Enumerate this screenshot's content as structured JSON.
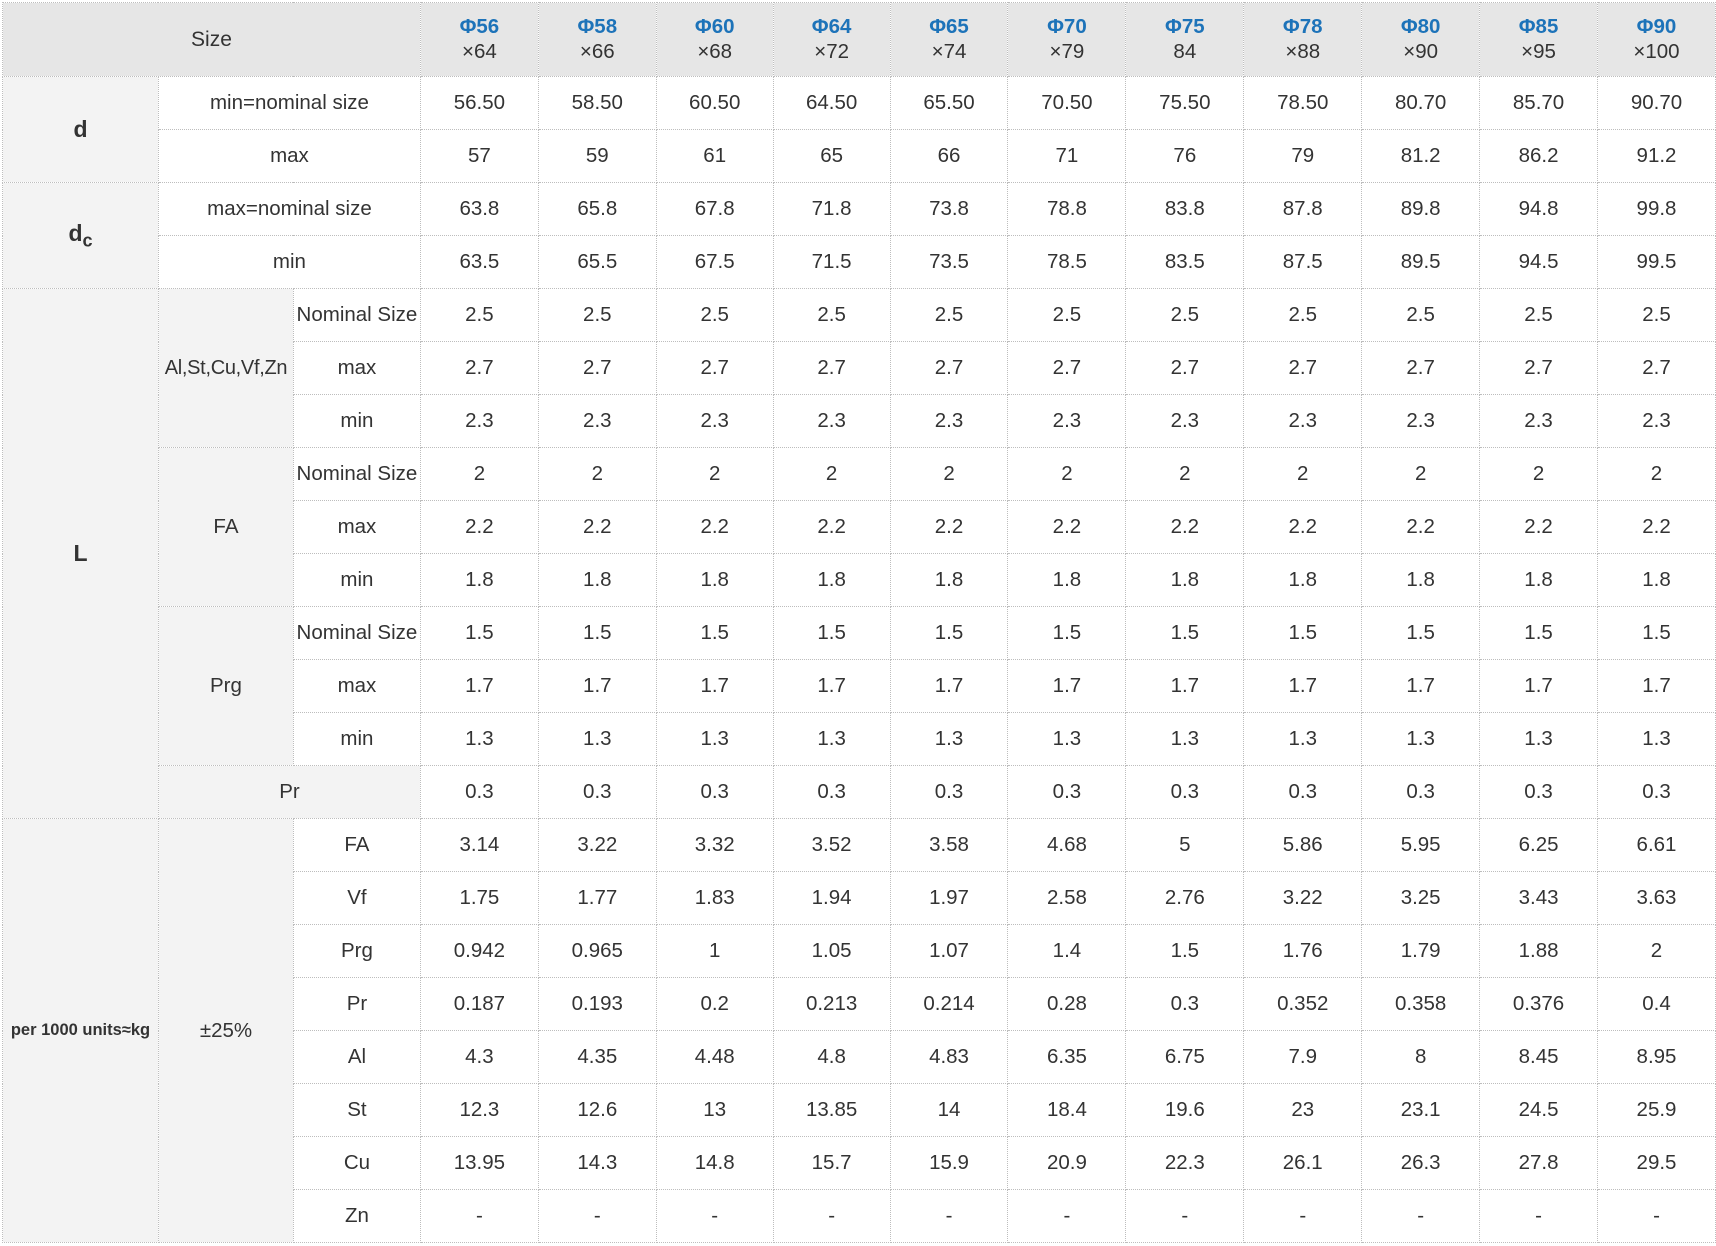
{
  "header": {
    "size_label": "Size",
    "columns": [
      {
        "phi": "Φ56",
        "dim": "×64"
      },
      {
        "phi": "Φ58",
        "dim": "×66"
      },
      {
        "phi": "Φ60",
        "dim": "×68"
      },
      {
        "phi": "Φ64",
        "dim": "×72"
      },
      {
        "phi": "Φ65",
        "dim": "×74"
      },
      {
        "phi": "Φ70",
        "dim": "×79"
      },
      {
        "phi": "Φ75",
        "dim": "84"
      },
      {
        "phi": "Φ78",
        "dim": "×88"
      },
      {
        "phi": "Φ80",
        "dim": "×90"
      },
      {
        "phi": "Φ85",
        "dim": "×95"
      },
      {
        "phi": "Φ90",
        "dim": "×100"
      }
    ]
  },
  "groups": {
    "d": {
      "label": "d"
    },
    "dc": {
      "label": "d",
      "sub": "c"
    },
    "L": {
      "label": "L"
    },
    "weight": {
      "label": "per 1000 units≈kg",
      "tolerance": "±25%"
    }
  },
  "rows": {
    "d_min": {
      "label": "min=nominal size",
      "values": [
        "56.50",
        "58.50",
        "60.50",
        "64.50",
        "65.50",
        "70.50",
        "75.50",
        "78.50",
        "80.70",
        "85.70",
        "90.70"
      ]
    },
    "d_max": {
      "label": "max",
      "values": [
        "57",
        "59",
        "61",
        "65",
        "66",
        "71",
        "76",
        "79",
        "81.2",
        "86.2",
        "91.2"
      ]
    },
    "dc_max": {
      "label": "max=nominal size",
      "values": [
        "63.8",
        "65.8",
        "67.8",
        "71.8",
        "73.8",
        "78.8",
        "83.8",
        "87.8",
        "89.8",
        "94.8",
        "99.8"
      ]
    },
    "dc_min": {
      "label": "min",
      "values": [
        "63.5",
        "65.5",
        "67.5",
        "71.5",
        "73.5",
        "78.5",
        "83.5",
        "87.5",
        "89.5",
        "94.5",
        "99.5"
      ]
    },
    "L_material_1": {
      "label": "Al,St,Cu,Vf,Zn",
      "nominal": {
        "label": "Nominal Size",
        "values": [
          "2.5",
          "2.5",
          "2.5",
          "2.5",
          "2.5",
          "2.5",
          "2.5",
          "2.5",
          "2.5",
          "2.5",
          "2.5"
        ]
      },
      "max": {
        "label": "max",
        "values": [
          "2.7",
          "2.7",
          "2.7",
          "2.7",
          "2.7",
          "2.7",
          "2.7",
          "2.7",
          "2.7",
          "2.7",
          "2.7"
        ]
      },
      "min": {
        "label": "min",
        "values": [
          "2.3",
          "2.3",
          "2.3",
          "2.3",
          "2.3",
          "2.3",
          "2.3",
          "2.3",
          "2.3",
          "2.3",
          "2.3"
        ]
      }
    },
    "L_material_2": {
      "label": "FA",
      "nominal": {
        "label": "Nominal Size",
        "values": [
          "2",
          "2",
          "2",
          "2",
          "2",
          "2",
          "2",
          "2",
          "2",
          "2",
          "2"
        ]
      },
      "max": {
        "label": "max",
        "values": [
          "2.2",
          "2.2",
          "2.2",
          "2.2",
          "2.2",
          "2.2",
          "2.2",
          "2.2",
          "2.2",
          "2.2",
          "2.2"
        ]
      },
      "min": {
        "label": "min",
        "values": [
          "1.8",
          "1.8",
          "1.8",
          "1.8",
          "1.8",
          "1.8",
          "1.8",
          "1.8",
          "1.8",
          "1.8",
          "1.8"
        ]
      }
    },
    "L_material_3": {
      "label": "Prg",
      "nominal": {
        "label": "Nominal Size",
        "values": [
          "1.5",
          "1.5",
          "1.5",
          "1.5",
          "1.5",
          "1.5",
          "1.5",
          "1.5",
          "1.5",
          "1.5",
          "1.5"
        ]
      },
      "max": {
        "label": "max",
        "values": [
          "1.7",
          "1.7",
          "1.7",
          "1.7",
          "1.7",
          "1.7",
          "1.7",
          "1.7",
          "1.7",
          "1.7",
          "1.7"
        ]
      },
      "min": {
        "label": "min",
        "values": [
          "1.3",
          "1.3",
          "1.3",
          "1.3",
          "1.3",
          "1.3",
          "1.3",
          "1.3",
          "1.3",
          "1.3",
          "1.3"
        ]
      }
    },
    "L_pr": {
      "label": "Pr",
      "values": [
        "0.3",
        "0.3",
        "0.3",
        "0.3",
        "0.3",
        "0.3",
        "0.3",
        "0.3",
        "0.3",
        "0.3",
        "0.3"
      ]
    },
    "weights": [
      {
        "label": "FA",
        "values": [
          "3.14",
          "3.22",
          "3.32",
          "3.52",
          "3.58",
          "4.68",
          "5",
          "5.86",
          "5.95",
          "6.25",
          "6.61"
        ]
      },
      {
        "label": "Vf",
        "values": [
          "1.75",
          "1.77",
          "1.83",
          "1.94",
          "1.97",
          "2.58",
          "2.76",
          "3.22",
          "3.25",
          "3.43",
          "3.63"
        ]
      },
      {
        "label": "Prg",
        "values": [
          "0.942",
          "0.965",
          "1",
          "1.05",
          "1.07",
          "1.4",
          "1.5",
          "1.76",
          "1.79",
          "1.88",
          "2"
        ]
      },
      {
        "label": "Pr",
        "values": [
          "0.187",
          "0.193",
          "0.2",
          "0.213",
          "0.214",
          "0.28",
          "0.3",
          "0.352",
          "0.358",
          "0.376",
          "0.4"
        ]
      },
      {
        "label": "Al",
        "values": [
          "4.3",
          "4.35",
          "4.48",
          "4.8",
          "4.83",
          "6.35",
          "6.75",
          "7.9",
          "8",
          "8.45",
          "8.95"
        ]
      },
      {
        "label": "St",
        "values": [
          "12.3",
          "12.6",
          "13",
          "13.85",
          "14",
          "18.4",
          "19.6",
          "23",
          "23.1",
          "24.5",
          "25.9"
        ]
      },
      {
        "label": "Cu",
        "values": [
          "13.95",
          "14.3",
          "14.8",
          "15.7",
          "15.9",
          "20.9",
          "22.3",
          "26.1",
          "26.3",
          "27.8",
          "29.5"
        ]
      },
      {
        "label": "Zn",
        "values": [
          "-",
          "-",
          "-",
          "-",
          "-",
          "-",
          "-",
          "-",
          "-",
          "-",
          "-"
        ]
      }
    ]
  }
}
